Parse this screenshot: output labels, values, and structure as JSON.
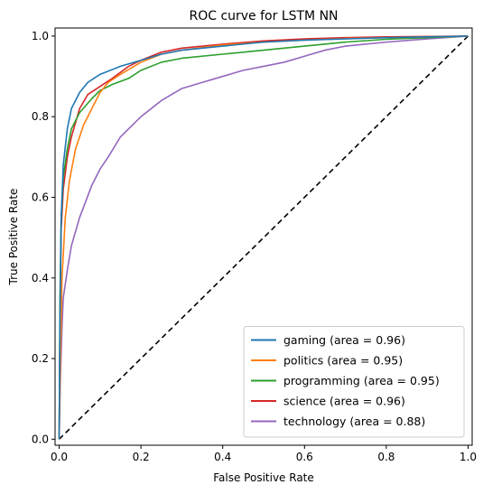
{
  "chart_data": {
    "type": "line",
    "title": "ROC curve for LSTM NN",
    "xlabel": "False Positive Rate",
    "ylabel": "True Positive Rate",
    "xlim": [
      -0.01,
      1.01
    ],
    "ylim": [
      -0.015,
      1.02
    ],
    "xticks": [
      0.0,
      0.2,
      0.4,
      0.6,
      0.8,
      1.0
    ],
    "yticks": [
      0.0,
      0.2,
      0.4,
      0.6,
      0.8,
      1.0
    ],
    "xtick_labels": [
      "0.0",
      "0.2",
      "0.4",
      "0.6",
      "0.8",
      "1.0"
    ],
    "ytick_labels": [
      "0.0",
      "0.2",
      "0.4",
      "0.6",
      "0.8",
      "1.0"
    ],
    "grid": false,
    "legend_position": "lower-right",
    "series": [
      {
        "name": "gaming (area = 0.96)",
        "color": "#1f77b4",
        "points": [
          [
            0,
            0
          ],
          [
            0.002,
            0.3
          ],
          [
            0.005,
            0.55
          ],
          [
            0.01,
            0.68
          ],
          [
            0.02,
            0.77
          ],
          [
            0.03,
            0.82
          ],
          [
            0.05,
            0.86
          ],
          [
            0.07,
            0.885
          ],
          [
            0.1,
            0.905
          ],
          [
            0.15,
            0.925
          ],
          [
            0.2,
            0.94
          ],
          [
            0.25,
            0.955
          ],
          [
            0.3,
            0.965
          ],
          [
            0.4,
            0.975
          ],
          [
            0.5,
            0.985
          ],
          [
            0.6,
            0.99
          ],
          [
            0.7,
            0.993
          ],
          [
            0.8,
            0.996
          ],
          [
            0.9,
            0.998
          ],
          [
            1.0,
            1.0
          ]
        ]
      },
      {
        "name": "politics (area = 0.95)",
        "color": "#ff7f0e",
        "points": [
          [
            0,
            0
          ],
          [
            0.003,
            0.2
          ],
          [
            0.007,
            0.4
          ],
          [
            0.015,
            0.55
          ],
          [
            0.025,
            0.64
          ],
          [
            0.04,
            0.72
          ],
          [
            0.06,
            0.78
          ],
          [
            0.08,
            0.82
          ],
          [
            0.1,
            0.86
          ],
          [
            0.12,
            0.885
          ],
          [
            0.15,
            0.905
          ],
          [
            0.2,
            0.935
          ],
          [
            0.25,
            0.955
          ],
          [
            0.3,
            0.965
          ],
          [
            0.4,
            0.978
          ],
          [
            0.5,
            0.985
          ],
          [
            0.6,
            0.99
          ],
          [
            0.7,
            0.994
          ],
          [
            0.8,
            0.996
          ],
          [
            0.9,
            0.998
          ],
          [
            1.0,
            1.0
          ]
        ]
      },
      {
        "name": "programming (area = 0.95)",
        "color": "#2ca02c",
        "points": [
          [
            0,
            0
          ],
          [
            0.002,
            0.35
          ],
          [
            0.005,
            0.55
          ],
          [
            0.01,
            0.65
          ],
          [
            0.02,
            0.72
          ],
          [
            0.03,
            0.77
          ],
          [
            0.05,
            0.81
          ],
          [
            0.08,
            0.845
          ],
          [
            0.1,
            0.865
          ],
          [
            0.13,
            0.88
          ],
          [
            0.17,
            0.895
          ],
          [
            0.2,
            0.915
          ],
          [
            0.25,
            0.935
          ],
          [
            0.3,
            0.945
          ],
          [
            0.4,
            0.955
          ],
          [
            0.5,
            0.965
          ],
          [
            0.6,
            0.975
          ],
          [
            0.7,
            0.985
          ],
          [
            0.8,
            0.992
          ],
          [
            0.9,
            0.996
          ],
          [
            1.0,
            1.0
          ]
        ]
      },
      {
        "name": "science (area = 0.96)",
        "color": "#d62728",
        "points": [
          [
            0,
            0
          ],
          [
            0.002,
            0.3
          ],
          [
            0.005,
            0.52
          ],
          [
            0.01,
            0.62
          ],
          [
            0.02,
            0.7
          ],
          [
            0.03,
            0.75
          ],
          [
            0.05,
            0.82
          ],
          [
            0.07,
            0.855
          ],
          [
            0.1,
            0.875
          ],
          [
            0.13,
            0.895
          ],
          [
            0.17,
            0.925
          ],
          [
            0.2,
            0.94
          ],
          [
            0.25,
            0.96
          ],
          [
            0.3,
            0.97
          ],
          [
            0.4,
            0.98
          ],
          [
            0.5,
            0.988
          ],
          [
            0.6,
            0.993
          ],
          [
            0.7,
            0.996
          ],
          [
            0.8,
            0.998
          ],
          [
            1.0,
            1.0
          ]
        ]
      },
      {
        "name": "technology (area = 0.88)",
        "color": "#9467bd",
        "points": [
          [
            0,
            0
          ],
          [
            0.003,
            0.15
          ],
          [
            0.007,
            0.28
          ],
          [
            0.01,
            0.35
          ],
          [
            0.02,
            0.42
          ],
          [
            0.03,
            0.48
          ],
          [
            0.05,
            0.55
          ],
          [
            0.08,
            0.63
          ],
          [
            0.1,
            0.67
          ],
          [
            0.12,
            0.7
          ],
          [
            0.15,
            0.75
          ],
          [
            0.2,
            0.8
          ],
          [
            0.25,
            0.84
          ],
          [
            0.3,
            0.87
          ],
          [
            0.35,
            0.885
          ],
          [
            0.4,
            0.9
          ],
          [
            0.45,
            0.915
          ],
          [
            0.5,
            0.925
          ],
          [
            0.55,
            0.935
          ],
          [
            0.6,
            0.95
          ],
          [
            0.65,
            0.965
          ],
          [
            0.7,
            0.975
          ],
          [
            0.8,
            0.985
          ],
          [
            0.9,
            0.993
          ],
          [
            1.0,
            1.0
          ]
        ]
      },
      {
        "name": "",
        "color": "#000000",
        "style": "dashed",
        "points": [
          [
            0,
            0
          ],
          [
            1,
            1
          ]
        ]
      }
    ]
  }
}
